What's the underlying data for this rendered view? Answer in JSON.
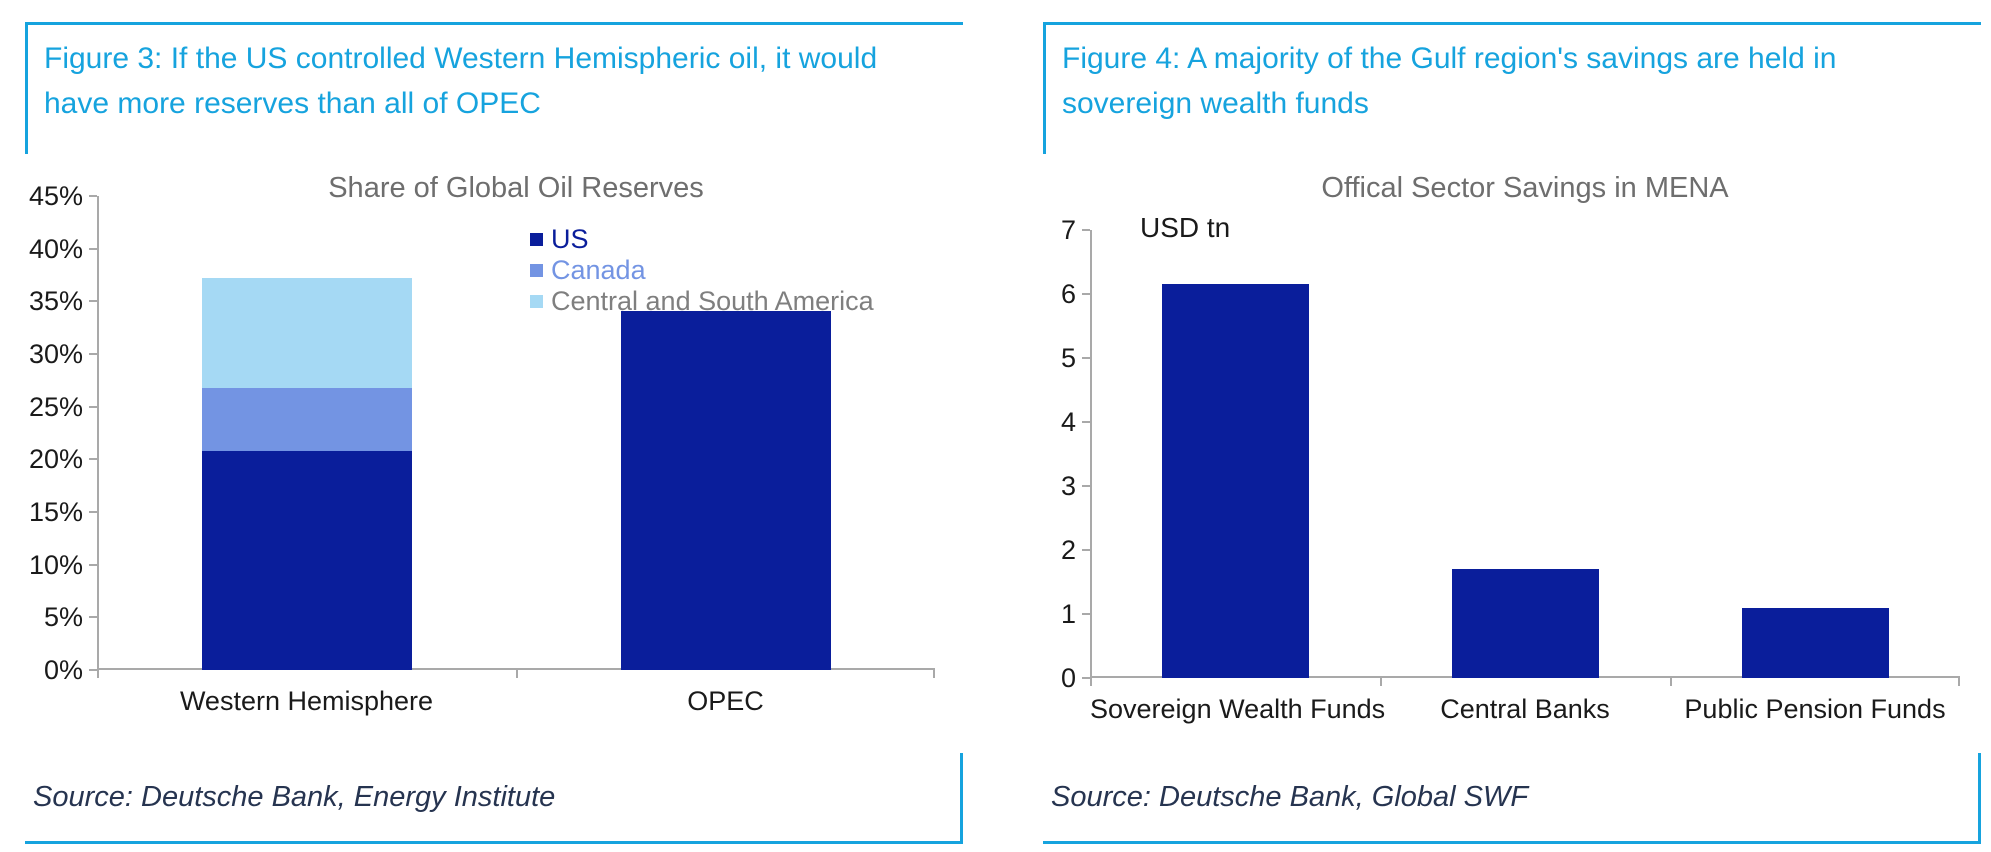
{
  "colors": {
    "accent_cyan": "#16A3DE",
    "navy": "#0A1E9B",
    "medium_blue": "#7394E3",
    "light_blue": "#A5D9F4",
    "axis_gray": "#A9A9A9",
    "chart_title_gray": "#6E6E6E",
    "label_dark": "#1A1A1A",
    "source_navy": "#263450",
    "legend_gray": "#7F7F7F"
  },
  "figure3": {
    "heading": "Figure 3: If the US controlled Western Hemispheric oil, it would have more reserves than all of OPEC",
    "source": "Source: Deutsche Bank, Energy Institute",
    "chart_data": {
      "type": "bar",
      "stacked": true,
      "title": "Share of Global Oil Reserves",
      "categories": [
        "Western Hemisphere",
        "OPEC"
      ],
      "series": [
        {
          "name": "US",
          "color": "#0A1E9B",
          "label_color": "#0A1E9B",
          "values": [
            20.8,
            34.1
          ]
        },
        {
          "name": "Canada",
          "color": "#7394E3",
          "label_color": "#7394E3",
          "values": [
            6.0,
            0
          ]
        },
        {
          "name": "Central and South America",
          "color": "#A5D9F4",
          "label_color": "#7F7F7F",
          "values": [
            10.4,
            0
          ]
        }
      ],
      "ylim": [
        0,
        45
      ],
      "y_tick_labels": [
        "45%",
        "40%",
        "35%",
        "30%",
        "25%",
        "20%",
        "15%",
        "10%",
        "5%",
        "0%"
      ],
      "grid": false,
      "legend_position": "inside-top-right"
    }
  },
  "figure4": {
    "heading": "Figure 4: A majority of the Gulf region's savings are held in sovereign wealth funds",
    "source": "Source: Deutsche Bank, Global SWF",
    "chart_data": {
      "type": "bar",
      "stacked": false,
      "title": "Offical Sector Savings in MENA",
      "unit_label": "USD tn",
      "categories": [
        "Sovereign Wealth Funds",
        "Central Banks",
        "Public Pension Funds"
      ],
      "values": [
        6.15,
        1.7,
        1.1
      ],
      "bar_color": "#0A1E9B",
      "ylim": [
        0,
        7
      ],
      "y_tick_labels": [
        "7",
        "6",
        "5",
        "4",
        "3",
        "2",
        "1",
        "0"
      ],
      "grid": false,
      "legend_position": "none"
    }
  }
}
